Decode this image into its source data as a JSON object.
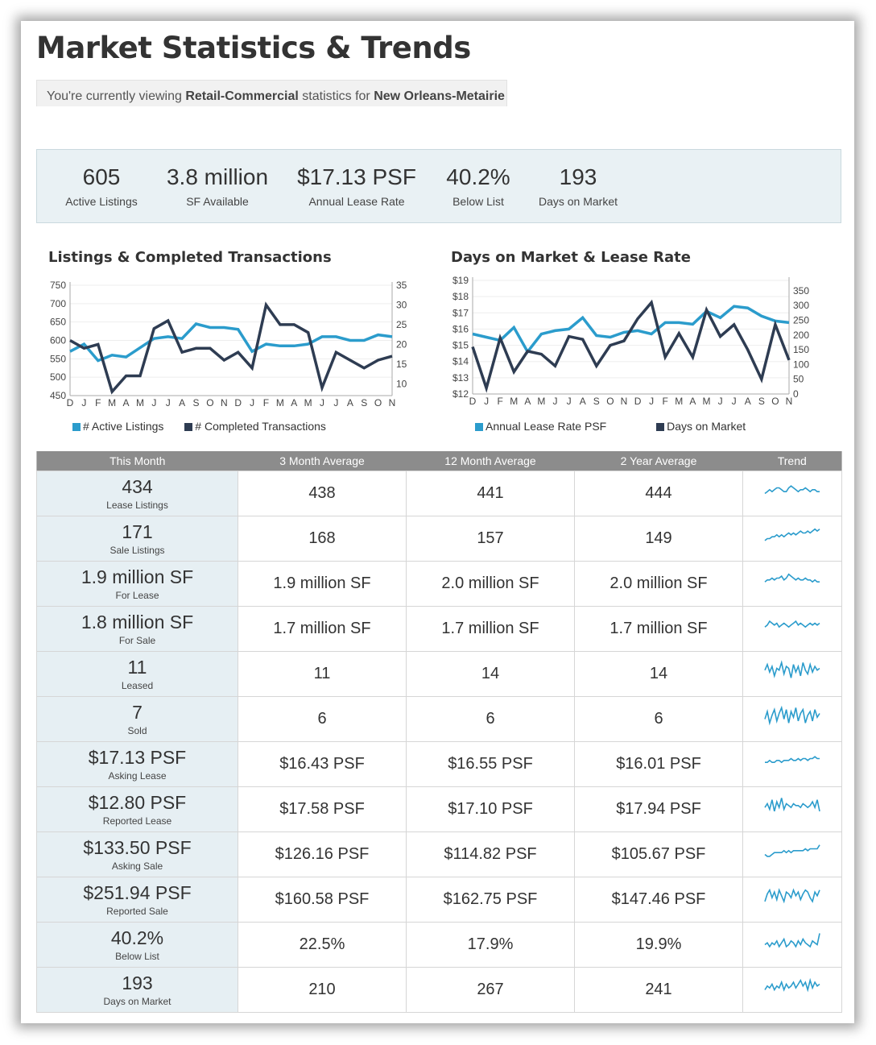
{
  "page": {
    "title": "Market Statistics & Trends",
    "viewing_prefix": "You're currently viewing ",
    "viewing_category": "Retail-Commercial",
    "viewing_middle": " statistics for ",
    "viewing_market": "New Orleans-Metairie"
  },
  "stats": [
    {
      "value": "605",
      "label": "Active Listings"
    },
    {
      "value": "3.8 million",
      "label": "SF Available"
    },
    {
      "value": "$17.13 PSF",
      "label": "Annual Lease Rate"
    },
    {
      "value": "40.2%",
      "label": "Below List"
    },
    {
      "value": "193",
      "label": "Days on Market"
    }
  ],
  "colors": {
    "light_series": "#2b9ccc",
    "dark_series": "#2e3c52",
    "header": "#8c8c8c",
    "panel": "#e9f1f4"
  },
  "chart_data": [
    {
      "type": "line",
      "title": "Listings & Completed Transactions",
      "categories": [
        "D",
        "J",
        "F",
        "M",
        "A",
        "M",
        "J",
        "J",
        "A",
        "S",
        "O",
        "N",
        "D",
        "J",
        "F",
        "M",
        "A",
        "M",
        "J",
        "J",
        "A",
        "S",
        "O",
        "N"
      ],
      "y_left_ticks": [
        "750",
        "700",
        "650",
        "600",
        "550",
        "500",
        "450"
      ],
      "y_right_ticks": [
        "35",
        "30",
        "25",
        "20",
        "15",
        "10"
      ],
      "y_left_range": [
        450,
        750
      ],
      "y_right_range": [
        7,
        35
      ],
      "series": [
        {
          "name": "# Active Listings",
          "axis": "left",
          "color": "#2b9ccc",
          "values": [
            570,
            590,
            545,
            560,
            555,
            580,
            605,
            610,
            605,
            645,
            635,
            635,
            630,
            570,
            590,
            585,
            585,
            590,
            610,
            610,
            600,
            600,
            615,
            610
          ]
        },
        {
          "name": "# Completed Transactions",
          "axis": "right",
          "color": "#2e3c52",
          "values": [
            21,
            19,
            20,
            8,
            12,
            12,
            24,
            26,
            18,
            19,
            19,
            16,
            18,
            14,
            30,
            25,
            25,
            23,
            9,
            18,
            16,
            14,
            16,
            17
          ]
        }
      ],
      "grid": true,
      "legend": "bottom"
    },
    {
      "type": "line",
      "title": "Days on Market & Lease Rate",
      "categories": [
        "D",
        "J",
        "F",
        "M",
        "A",
        "M",
        "J",
        "J",
        "A",
        "S",
        "O",
        "N",
        "D",
        "J",
        "F",
        "M",
        "A",
        "M",
        "J",
        "J",
        "A",
        "S",
        "O",
        "N"
      ],
      "y_left_ticks": [
        "$19",
        "$18",
        "$17",
        "$16",
        "$15",
        "$14",
        "$13",
        "$12"
      ],
      "y_right_ticks": [
        "350",
        "300",
        "250",
        "200",
        "150",
        "100",
        "50",
        "0"
      ],
      "y_left_range": [
        12,
        19
      ],
      "y_right_range": [
        0,
        385
      ],
      "series": [
        {
          "name": "Annual Lease Rate PSF",
          "axis": "left",
          "color": "#2b9ccc",
          "values": [
            15.7,
            15.5,
            15.3,
            16.1,
            14.6,
            15.7,
            15.9,
            16.0,
            16.7,
            15.6,
            15.5,
            15.8,
            15.9,
            15.7,
            16.4,
            16.4,
            16.3,
            17.1,
            16.7,
            17.4,
            17.3,
            16.8,
            16.5,
            16.4
          ]
        },
        {
          "name": "Days on Market",
          "axis": "right",
          "color": "#2e3c52",
          "values": [
            160,
            20,
            190,
            75,
            145,
            135,
            95,
            195,
            185,
            95,
            165,
            180,
            255,
            310,
            125,
            205,
            125,
            285,
            195,
            235,
            150,
            50,
            235,
            115
          ]
        }
      ],
      "grid": true,
      "legend": "bottom"
    }
  ],
  "table": {
    "headers": [
      "This Month",
      "3 Month Average",
      "12 Month Average",
      "2 Year Average",
      "Trend"
    ],
    "rows": [
      {
        "value": "434",
        "label": "Lease Listings",
        "avg3": "438",
        "avg12": "441",
        "avg24": "444",
        "trend": [
          4,
          5,
          6,
          5,
          6,
          7,
          7,
          6,
          5,
          5,
          7,
          8,
          7,
          6,
          5,
          6,
          6,
          7,
          6,
          5,
          6,
          6,
          5,
          5
        ]
      },
      {
        "value": "171",
        "label": "Sale Listings",
        "avg3": "168",
        "avg12": "157",
        "avg24": "149",
        "trend": [
          3,
          4,
          4,
          5,
          5,
          6,
          5,
          6,
          5,
          6,
          7,
          6,
          7,
          6,
          7,
          8,
          7,
          7,
          8,
          7,
          8,
          9,
          8,
          9
        ]
      },
      {
        "value": "1.9 million SF",
        "label": "For Lease",
        "avg3": "1.9 million SF",
        "avg12": "2.0 million SF",
        "avg24": "2.0 million SF",
        "trend": [
          5,
          6,
          6,
          7,
          6,
          7,
          7,
          8,
          6,
          7,
          9,
          8,
          7,
          6,
          7,
          6,
          6,
          7,
          6,
          6,
          5,
          6,
          5,
          5
        ]
      },
      {
        "value": "1.8 million SF",
        "label": "For Sale",
        "avg3": "1.7 million SF",
        "avg12": "1.7 million SF",
        "avg24": "1.7 million SF",
        "trend": [
          5,
          6,
          8,
          7,
          6,
          7,
          5,
          6,
          7,
          6,
          5,
          6,
          7,
          8,
          6,
          7,
          6,
          5,
          6,
          7,
          6,
          7,
          6,
          7
        ]
      },
      {
        "value": "11",
        "label": "Leased",
        "avg3": "11",
        "avg12": "14",
        "avg24": "14",
        "trend": [
          6,
          9,
          5,
          8,
          3,
          7,
          6,
          10,
          4,
          8,
          7,
          2,
          9,
          5,
          8,
          3,
          10,
          6,
          4,
          9,
          5,
          8,
          6,
          7
        ]
      },
      {
        "value": "7",
        "label": "Sold",
        "avg3": "6",
        "avg12": "6",
        "avg24": "6",
        "trend": [
          4,
          8,
          2,
          6,
          9,
          3,
          7,
          10,
          4,
          9,
          2,
          8,
          5,
          10,
          3,
          7,
          9,
          2,
          6,
          8,
          3,
          9,
          5,
          7
        ]
      },
      {
        "value": "$17.13 PSF",
        "label": "Asking Lease",
        "avg3": "$16.43 PSF",
        "avg12": "$16.55 PSF",
        "avg24": "$16.01 PSF",
        "trend": [
          5,
          5,
          6,
          5,
          5,
          6,
          6,
          5,
          6,
          6,
          6,
          7,
          6,
          6,
          7,
          6,
          7,
          7,
          6,
          7,
          7,
          8,
          7,
          7
        ]
      },
      {
        "value": "$12.80 PSF",
        "label": "Reported Lease",
        "avg3": "$17.58 PSF",
        "avg12": "$17.10 PSF",
        "avg24": "$17.94 PSF",
        "trend": [
          5,
          7,
          4,
          9,
          3,
          8,
          5,
          10,
          4,
          7,
          6,
          5,
          7,
          6,
          6,
          5,
          7,
          6,
          5,
          6,
          8,
          5,
          9,
          3
        ]
      },
      {
        "value": "$133.50 PSF",
        "label": "Asking Sale",
        "avg3": "$126.16 PSF",
        "avg12": "$114.82 PSF",
        "avg24": "$105.67 PSF",
        "trend": [
          4,
          3,
          3,
          4,
          5,
          5,
          5,
          5,
          6,
          5,
          6,
          5,
          6,
          6,
          6,
          6,
          6,
          7,
          6,
          7,
          7,
          7,
          7,
          9
        ]
      },
      {
        "value": "$251.94 PSF",
        "label": "Reported Sale",
        "avg3": "$160.58 PSF",
        "avg12": "$162.75 PSF",
        "avg24": "$147.46 PSF",
        "trend": [
          3,
          7,
          9,
          5,
          8,
          4,
          9,
          6,
          3,
          8,
          7,
          5,
          9,
          6,
          8,
          4,
          7,
          9,
          8,
          5,
          3,
          8,
          6,
          9
        ]
      },
      {
        "value": "40.2%",
        "label": "Below List",
        "avg3": "22.5%",
        "avg12": "17.9%",
        "avg24": "19.9%",
        "trend": [
          4,
          5,
          3,
          5,
          4,
          6,
          3,
          5,
          7,
          3,
          4,
          6,
          5,
          3,
          6,
          4,
          7,
          5,
          4,
          3,
          6,
          5,
          4,
          10
        ]
      },
      {
        "value": "193",
        "label": "Days on Market",
        "avg3": "210",
        "avg12": "267",
        "avg24": "241",
        "trend": [
          4,
          6,
          5,
          7,
          4,
          6,
          5,
          8,
          4,
          7,
          5,
          6,
          8,
          5,
          7,
          9,
          6,
          8,
          4,
          9,
          5,
          8,
          6,
          7
        ]
      }
    ]
  }
}
